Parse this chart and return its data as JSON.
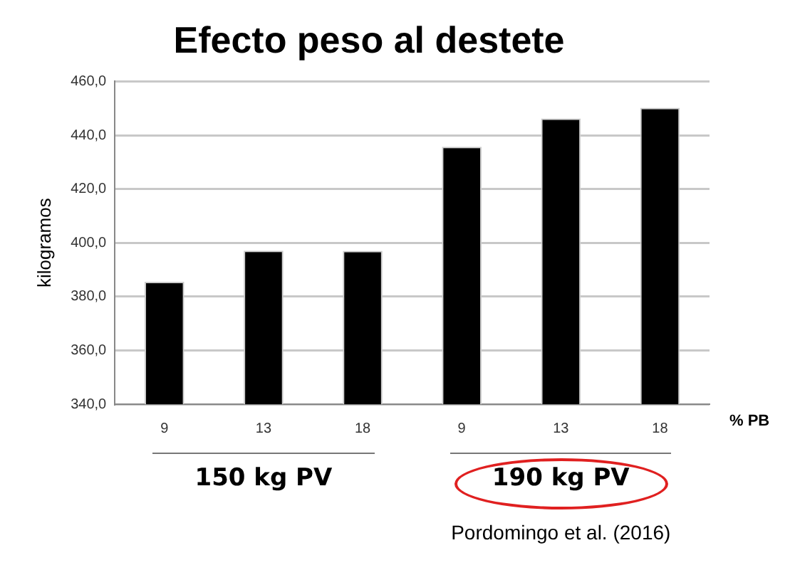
{
  "chart_data": {
    "type": "bar",
    "title": "Efecto peso al destete",
    "xlabel": "% PB",
    "ylabel": "kilogramos",
    "categories": [
      "9",
      "13",
      "18",
      "9",
      "13",
      "18"
    ],
    "values": [
      385.5,
      397.1,
      397.0,
      435.7,
      446.2,
      450.2
    ],
    "color": "#000000",
    "ylim": [
      340,
      460
    ],
    "yticks": [
      {
        "value": 340,
        "label": "340,0"
      },
      {
        "value": 360,
        "label": "360,0"
      },
      {
        "value": 380,
        "label": "380,0"
      },
      {
        "value": 400,
        "label": "400,0"
      },
      {
        "value": 420,
        "label": "420,0"
      },
      {
        "value": 440,
        "label": "440,0"
      },
      {
        "value": 460,
        "label": "460,0"
      }
    ],
    "grid": "y",
    "legend": false,
    "annotations": [
      "150 kg PV",
      "190 kg PV",
      "Pordomingo et al. (2016)"
    ]
  }
}
